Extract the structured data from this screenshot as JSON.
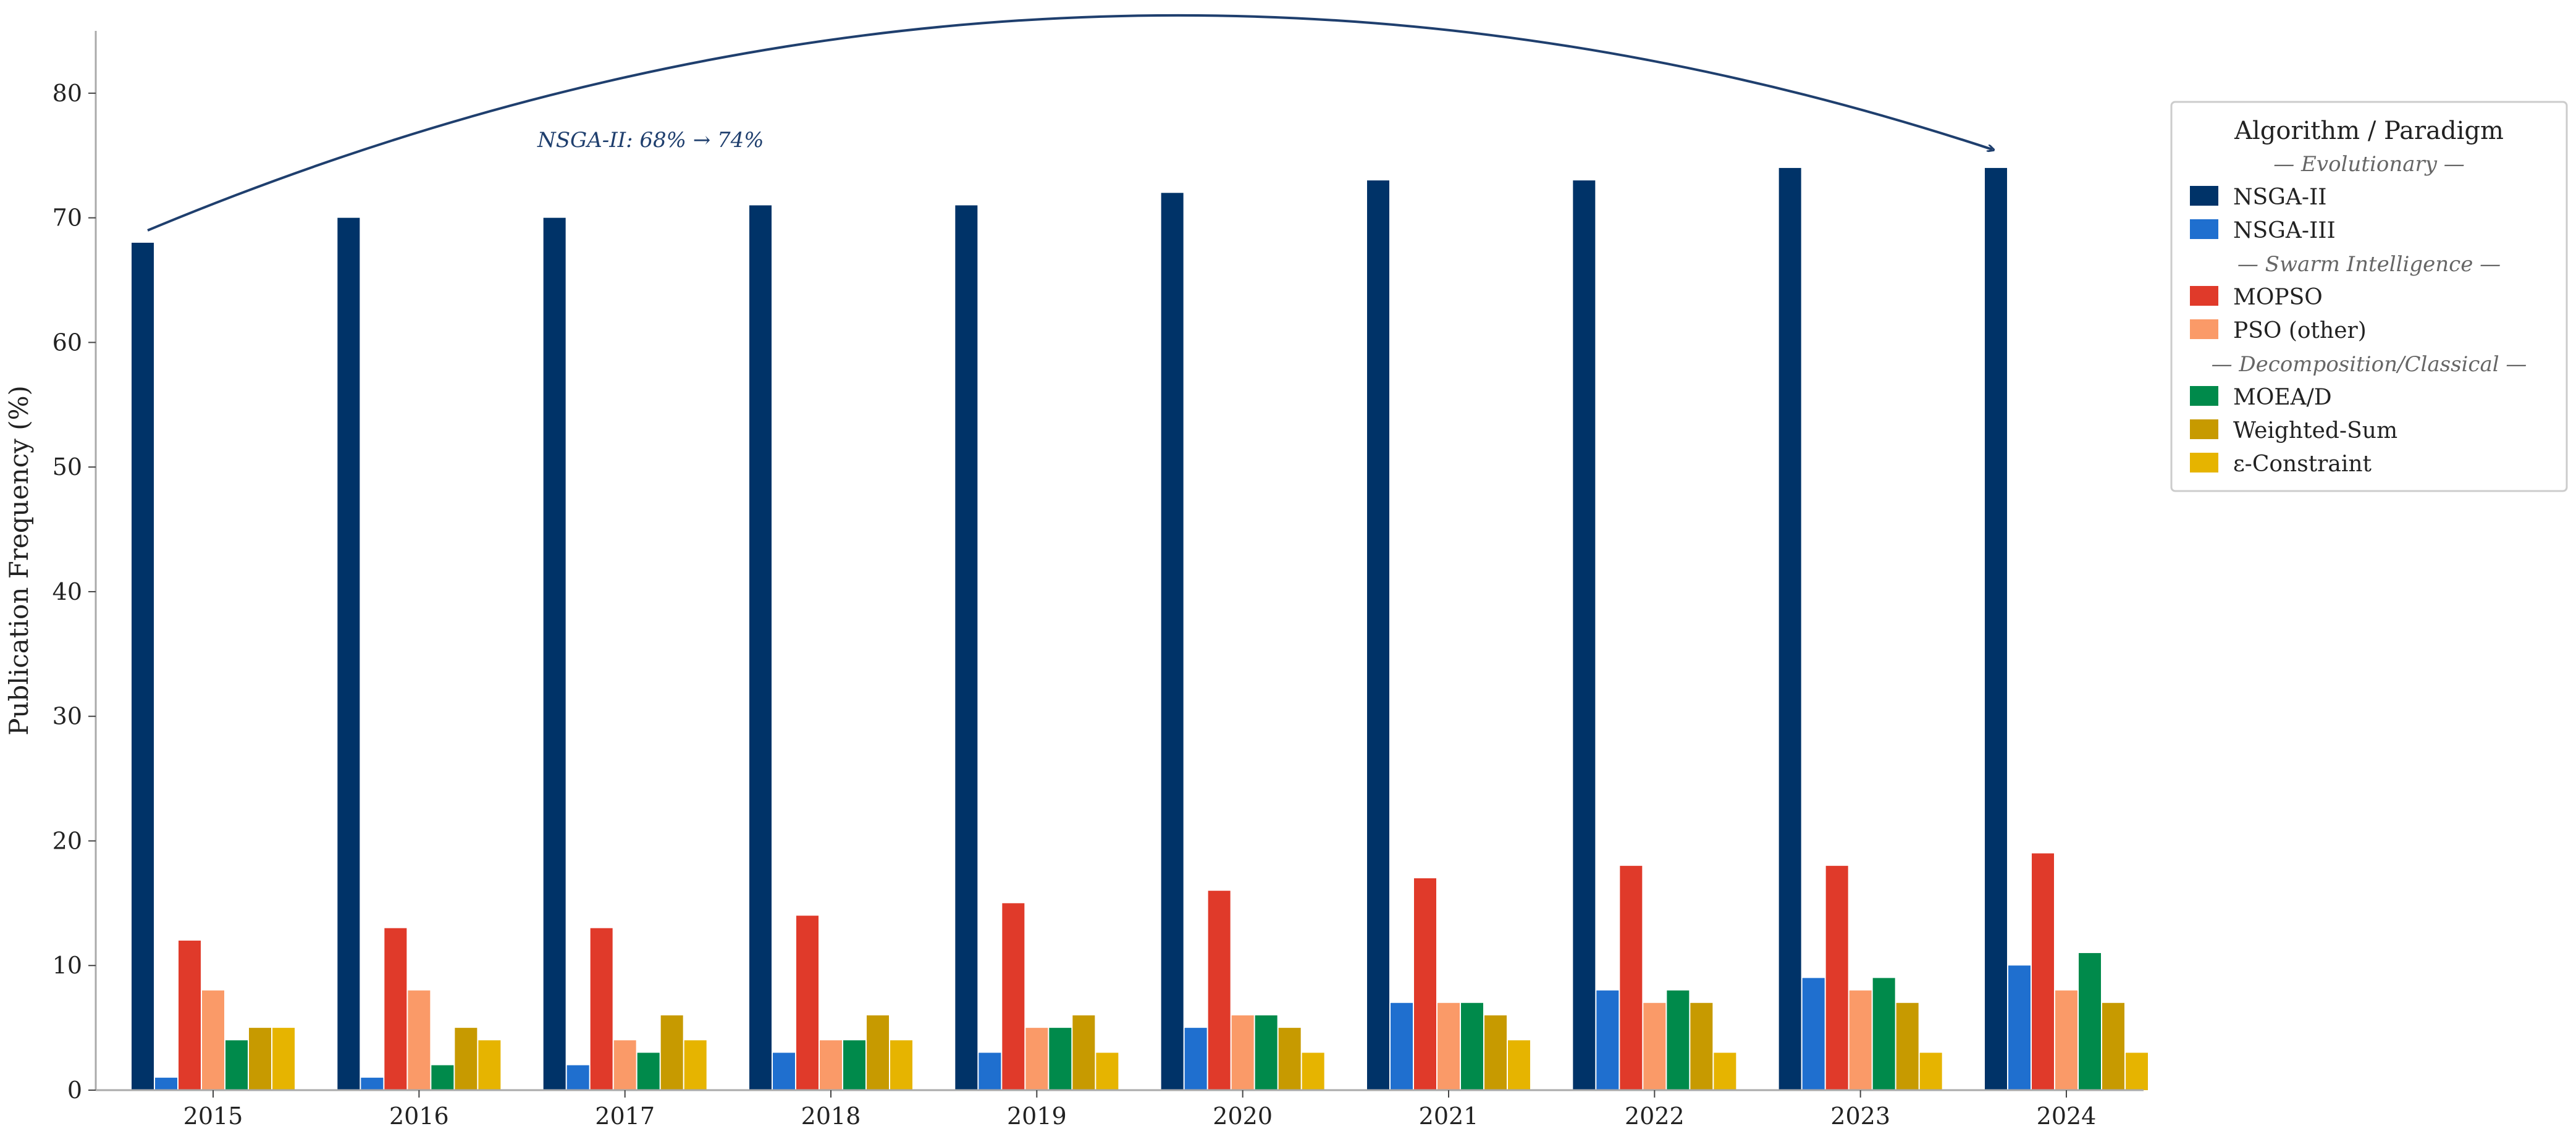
{
  "chart_data": {
    "type": "bar",
    "title": "",
    "xlabel": "",
    "ylabel": "Publication Frequency (%)",
    "ylim": [
      0,
      85
    ],
    "yticks": [
      0,
      10,
      20,
      30,
      40,
      50,
      60,
      70,
      80
    ],
    "grid": false,
    "legend_placement": "top-right",
    "categories": [
      "2015",
      "2016",
      "2017",
      "2018",
      "2019",
      "2020",
      "2021",
      "2022",
      "2023",
      "2024"
    ],
    "series": [
      {
        "name": "NSGA-II",
        "color": "#003368",
        "values": [
          68,
          70,
          70,
          71,
          71,
          72,
          73,
          73,
          74,
          74
        ]
      },
      {
        "name": "NSGA-III",
        "color": "#1f6fcf",
        "values": [
          1,
          1,
          2,
          3,
          3,
          5,
          7,
          8,
          9,
          10
        ]
      },
      {
        "name": "MOPSO",
        "color": "#e03a2a",
        "values": [
          12,
          13,
          13,
          14,
          15,
          16,
          17,
          18,
          18,
          19
        ]
      },
      {
        "name": "PSO (other)",
        "color": "#fa9a68",
        "values": [
          8,
          8,
          4,
          4,
          5,
          6,
          7,
          7,
          8,
          8
        ]
      },
      {
        "name": "MOEA/D",
        "color": "#008a4b",
        "values": [
          4,
          2,
          3,
          4,
          5,
          6,
          7,
          8,
          9,
          11
        ]
      },
      {
        "name": "Weighted-Sum",
        "color": "#c79a00",
        "values": [
          5,
          5,
          6,
          6,
          6,
          5,
          6,
          7,
          7,
          7
        ]
      },
      {
        "name": "ε-Constraint",
        "color": "#e6b400",
        "values": [
          5,
          4,
          4,
          4,
          3,
          3,
          4,
          3,
          3,
          3
        ]
      }
    ],
    "legend": {
      "title": "Algorithm / Paradigm",
      "groups": [
        {
          "header": "— Evolutionary —",
          "series": [
            "NSGA-II",
            "NSGA-III"
          ]
        },
        {
          "header": "— Swarm Intelligence —",
          "series": [
            "MOPSO",
            "PSO (other)"
          ]
        },
        {
          "header": "— Decomposition/Classical —",
          "series": [
            "MOEA/D",
            "Weighted-Sum",
            "ε-Constraint"
          ]
        }
      ]
    },
    "annotation": {
      "text": "NSGA-II: 68% → 74%",
      "from": [
        "2015",
        68
      ],
      "to": [
        "2024",
        74
      ],
      "color": "#1f3f6e"
    },
    "axis_color": "#aaaaaa"
  }
}
